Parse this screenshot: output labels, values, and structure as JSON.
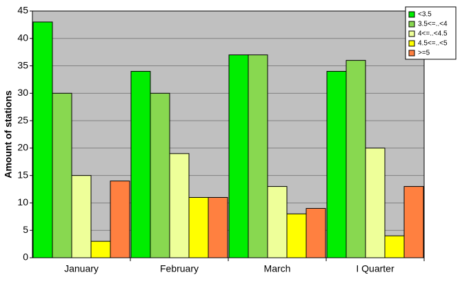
{
  "chart_data": {
    "type": "bar",
    "y_label": "Amount of stations",
    "categories": [
      "January",
      "February",
      "March",
      "I Quarter"
    ],
    "series": [
      {
        "name": "<3.5",
        "color": "#00ee00",
        "values": [
          43,
          34,
          37,
          34
        ]
      },
      {
        "name": "3.5<=..<4",
        "color": "#88d850",
        "values": [
          30,
          30,
          37,
          36
        ]
      },
      {
        "name": "4<=..<4.5",
        "color": "#eeff99",
        "values": [
          15,
          19,
          13,
          20
        ]
      },
      {
        "name": "4.5<=..<5",
        "color": "#ffff00",
        "values": [
          3,
          11,
          8,
          4
        ]
      },
      {
        "name": ">=5",
        "color": "#ff8040",
        "values": [
          14,
          11,
          9,
          13
        ]
      }
    ],
    "ylim": [
      0,
      45
    ],
    "yticks": [
      0,
      5,
      10,
      15,
      20,
      25,
      30,
      35,
      40,
      45
    ],
    "grid": true,
    "legend": "top-right"
  }
}
